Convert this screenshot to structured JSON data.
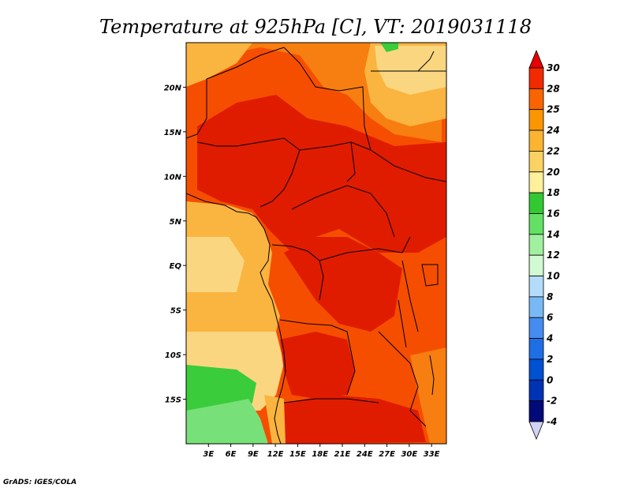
{
  "title": "Temperature at 925hPa [C], VT: 2019031118",
  "credit": "GrADS: IGES/COLA",
  "map": {
    "lon_range": [
      0,
      35
    ],
    "lat_range": [
      -20,
      25
    ],
    "lon_ticks": [
      "3E",
      "6E",
      "9E",
      "12E",
      "15E",
      "18E",
      "21E",
      "24E",
      "27E",
      "30E",
      "33E"
    ],
    "lat_ticks": [
      "20N",
      "15N",
      "10N",
      "5N",
      "EQ",
      "5S",
      "10S",
      "15S"
    ]
  },
  "colorbar": {
    "labels": [
      "30",
      "28",
      "25",
      "24",
      "22",
      "20",
      "18",
      "16",
      "14",
      "12",
      "10",
      "8",
      "6",
      "4",
      "2",
      "0",
      "-2",
      "-4"
    ],
    "colors": [
      "#e60000",
      "#f22a00",
      "#fa6400",
      "#fa9600",
      "#fab432",
      "#fad264",
      "#fff09b",
      "#32c832",
      "#64e164",
      "#a0f0a0",
      "#d2fad2",
      "#b4dcfa",
      "#78b9f5",
      "#468cf0",
      "#1e6ee6",
      "#0050d2",
      "#0032b4",
      "#000a78",
      "#d2d2f5"
    ]
  },
  "colors": {
    "hot": "#e01c00",
    "warm": "#f54e00",
    "orange": "#f77e10",
    "light_orange": "#fab440",
    "pale": "#fad680",
    "green": "#3acc3a",
    "light_green": "#78e078"
  }
}
